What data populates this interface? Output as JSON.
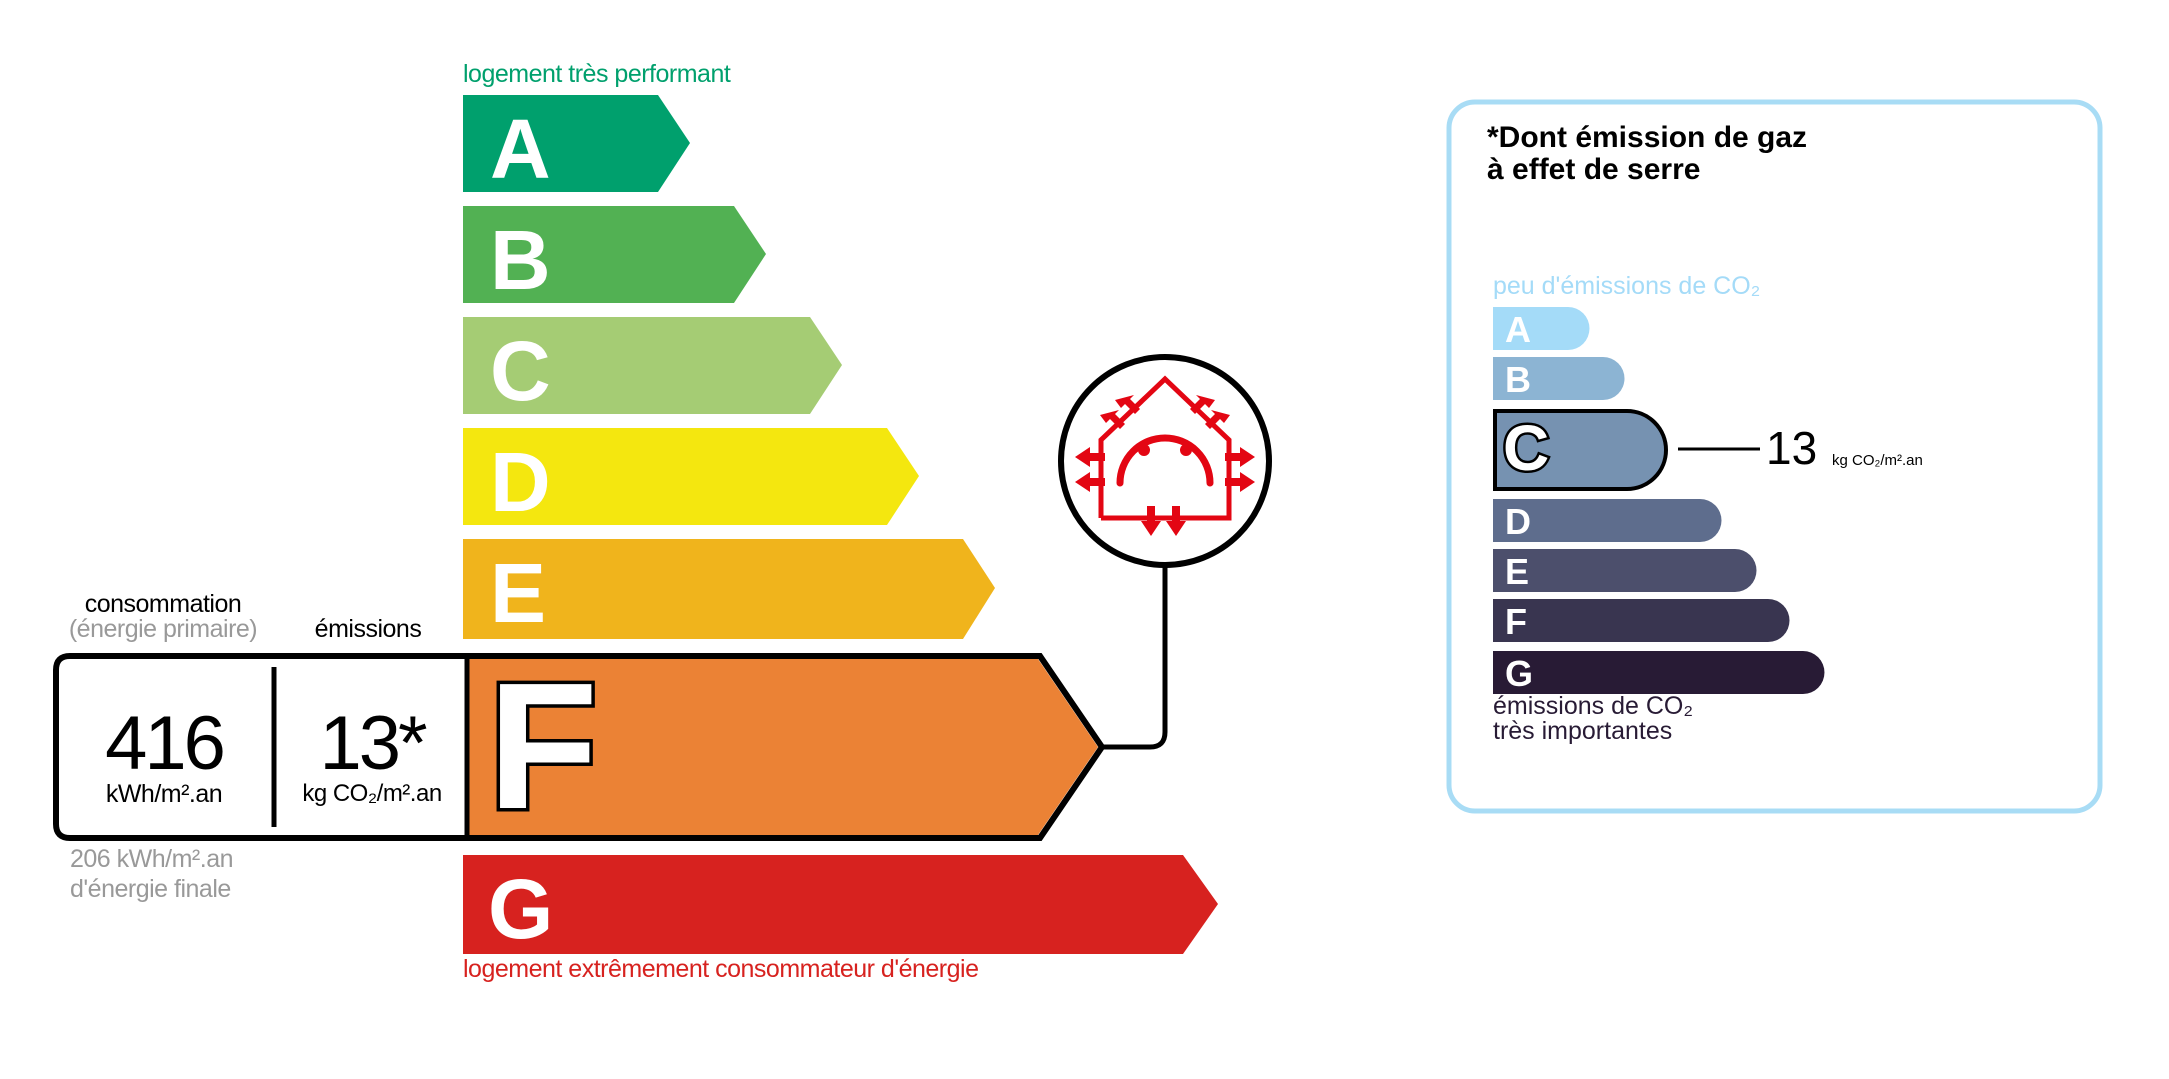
{
  "energy_label": {
    "top_caption": "logement très performant",
    "bottom_caption": "logement extrêmement consommateur d'énergie",
    "classes": [
      {
        "letter": "A",
        "color": "#00a06d"
      },
      {
        "letter": "B",
        "color": "#52b153"
      },
      {
        "letter": "C",
        "color": "#a5cc74"
      },
      {
        "letter": "D",
        "color": "#f4e70f"
      },
      {
        "letter": "E",
        "color": "#f0b41c"
      },
      {
        "letter": "F",
        "color": "#eb8235"
      },
      {
        "letter": "G",
        "color": "#d7221f"
      }
    ],
    "current_class": "F",
    "consumption_header": "consommation",
    "consumption_subheader": "(énergie primaire)",
    "emissions_header": "émissions",
    "consumption_value": "416",
    "consumption_unit": "kWh/m².an",
    "emissions_value": "13*",
    "emissions_unit": "kg CO₂/m².an",
    "final_energy_line1": "206 kWh/m².an",
    "final_energy_line2": "d'énergie finale",
    "badge_icon": "house-heat-loss-sad-face-icon",
    "badge_color": "#e30613"
  },
  "ges_panel": {
    "title_line1": "*Dont émission de gaz",
    "title_line2": "à effet de serre",
    "top_caption": "peu d'émissions de CO₂",
    "bottom_caption_line1": "émissions de CO₂",
    "bottom_caption_line2": "très importantes",
    "border_color": "#a8dcf5",
    "classes": [
      {
        "letter": "A",
        "color": "#a4dbf8"
      },
      {
        "letter": "B",
        "color": "#8cb4d3"
      },
      {
        "letter": "C",
        "color": "#7692b1"
      },
      {
        "letter": "D",
        "color": "#5e6d8d"
      },
      {
        "letter": "E",
        "color": "#4c4f6c"
      },
      {
        "letter": "F",
        "color": "#393550"
      },
      {
        "letter": "G",
        "color": "#281b35"
      }
    ],
    "current_class": "C",
    "value": "13",
    "unit": "kg CO₂/m².an"
  }
}
